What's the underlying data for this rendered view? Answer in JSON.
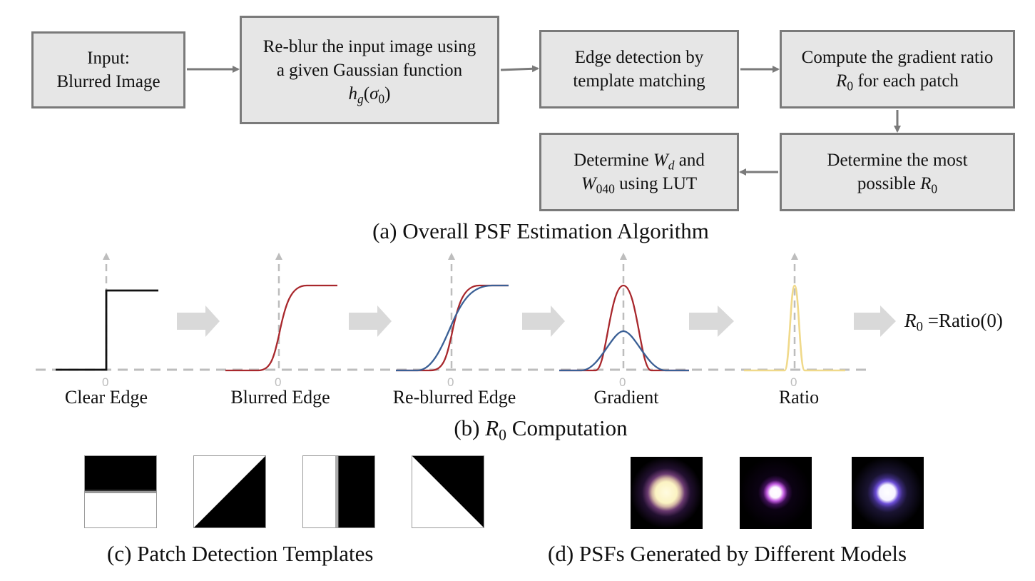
{
  "flowchart": {
    "input": {
      "line1": "Input:",
      "line2": "Blurred Image"
    },
    "reblur": {
      "line1": "Re-blur the input image using",
      "line2": "a given Gaussian function",
      "line3_fn": "h",
      "line3_sub": "g",
      "line3_arg": "σ",
      "line3_arg_sub": "0"
    },
    "edge": {
      "line1": "Edge detection by",
      "line2": "template matching"
    },
    "compute": {
      "line1": "Compute the gradient ratio",
      "line2_var": "R",
      "line2_sub": "0",
      "line2_rest": " for each patch"
    },
    "determine_r0": {
      "line1": "Determine the most",
      "line2_pre": "possible ",
      "line2_var": "R",
      "line2_sub": "0"
    },
    "determine_w": {
      "line1_pre": "Determine ",
      "line1_var": "W",
      "line1_sub": "d",
      "line1_post": " and",
      "line2_var": "W",
      "line2_sub": "040",
      "line2_post": " using LUT"
    },
    "caption": "(a) Overall PSF Estimation Algorithm"
  },
  "r0_computation": {
    "panels": [
      "Clear Edge",
      "Blurred Edge",
      "Re-blurred Edge",
      "Gradient",
      "Ratio"
    ],
    "origin_tick": "0",
    "result": {
      "var": "R",
      "sub": "0",
      "rest": " =Ratio(0)"
    },
    "caption_pre": "(b) ",
    "caption_var": "R",
    "caption_sub": "0",
    "caption_post": " Computation",
    "colors": {
      "clear": "#111111",
      "blurred": "#a8272c",
      "reblurred": "#3a5f95",
      "ratio": "#f0d98a",
      "axis": "#bdbdbd",
      "arrow": "#d9d9d9"
    }
  },
  "templates": {
    "caption": "(c)  Patch Detection Templates",
    "items": [
      "horizontal-edge",
      "diagonal-edge-rising",
      "vertical-edge",
      "diagonal-edge-falling"
    ]
  },
  "psfs": {
    "caption": "(d) PSFs  Generated  by Different Models",
    "items": [
      "psf-large-yellow",
      "psf-small-violet",
      "psf-medium-blue"
    ]
  }
}
